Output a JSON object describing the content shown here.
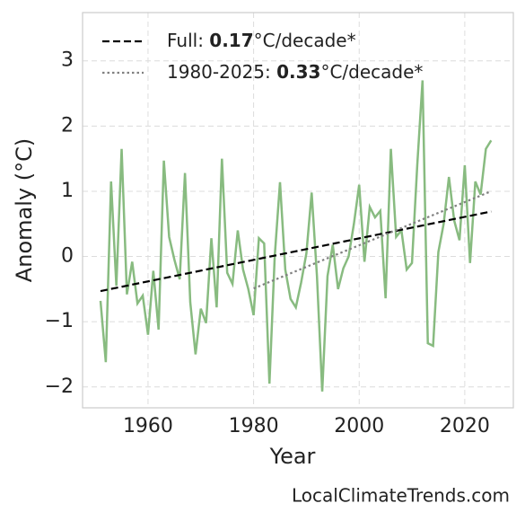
{
  "chart_data": {
    "type": "line",
    "xlabel": "Year",
    "ylabel": "Anomaly (°C)",
    "footer": "LocalClimateTrends.com",
    "xlim": [
      1947.6,
      2029.2
    ],
    "ylim": [
      -2.32,
      3.74
    ],
    "xticks": [
      1960,
      1980,
      2000,
      2020
    ],
    "yticks": [
      {
        "value": -2,
        "label": "−2"
      },
      {
        "value": -1,
        "label": "−1"
      },
      0,
      1,
      2,
      3
    ],
    "grid": true,
    "legend": "upper left",
    "series": [
      {
        "color": "#88bb80",
        "style": "solid",
        "x": [
          1951,
          1952,
          1953,
          1954,
          1955,
          1956,
          1957,
          1958,
          1959,
          1960,
          1961,
          1962,
          1963,
          1964,
          1965,
          1966,
          1967,
          1968,
          1969,
          1970,
          1971,
          1972,
          1973,
          1974,
          1975,
          1976,
          1977,
          1978,
          1979,
          1980,
          1981,
          1982,
          1983,
          1984,
          1985,
          1986,
          1987,
          1988,
          1989,
          1990,
          1991,
          1992,
          1993,
          1994,
          1995,
          1996,
          1997,
          1998,
          1999,
          2000,
          2001,
          2002,
          2003,
          2004,
          2005,
          2006,
          2007,
          2008,
          2009,
          2010,
          2011,
          2012,
          2013,
          2014,
          2015,
          2016,
          2017,
          2018,
          2019,
          2020,
          2021,
          2022,
          2023,
          2024,
          2025
        ],
        "values": [
          -0.68,
          -1.62,
          1.15,
          -0.45,
          1.65,
          -0.58,
          -0.08,
          -0.72,
          -0.6,
          -1.2,
          -0.22,
          -1.12,
          1.47,
          0.3,
          -0.05,
          -0.35,
          1.28,
          -0.7,
          -1.5,
          -0.8,
          -1.02,
          0.28,
          -0.78,
          1.5,
          -0.25,
          -0.42,
          0.4,
          -0.2,
          -0.5,
          -0.9,
          0.28,
          0.2,
          -1.95,
          0.0,
          1.14,
          -0.2,
          -0.65,
          -0.78,
          -0.4,
          0.05,
          0.98,
          -0.3,
          -2.07,
          -0.3,
          0.18,
          -0.5,
          -0.18,
          0.0,
          0.5,
          1.1,
          -0.08,
          0.76,
          0.6,
          0.7,
          -0.64,
          1.65,
          0.3,
          0.4,
          -0.2,
          -0.1,
          1.4,
          2.7,
          -1.33,
          -1.37,
          0.07,
          0.5,
          1.22,
          0.55,
          0.25,
          1.4,
          -0.1,
          1.15,
          0.95,
          1.65,
          1.78
        ]
      },
      {
        "name": "Full: 0.17°C/decade*",
        "color": "#000000",
        "style": "dashed",
        "x": [
          1951,
          2025
        ],
        "values": [
          -0.53,
          0.69
        ]
      },
      {
        "name": "1980-2025: 0.33°C/decade*",
        "color": "#808080",
        "style": "dotted",
        "x": [
          1980,
          2025
        ],
        "values": [
          -0.49,
          1.0
        ]
      }
    ]
  }
}
